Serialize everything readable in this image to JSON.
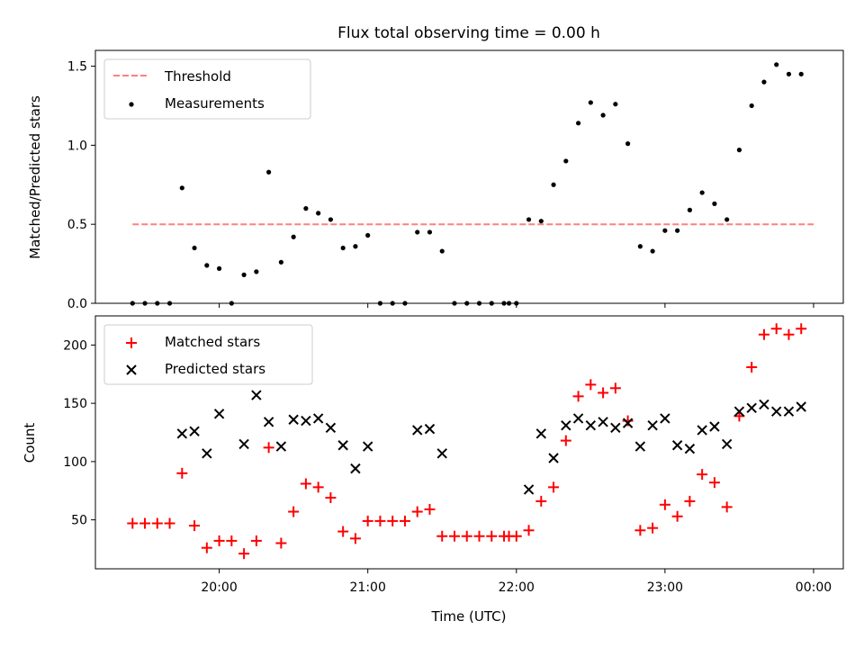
{
  "figure": {
    "title": "Flux total observing time = 0.00 h",
    "xlabel": "Time (UTC)",
    "colors": {
      "threshold": "#ff7f7f",
      "measurements": "#000000",
      "matched": "#ff0000",
      "predicted": "#000000"
    }
  },
  "chart_data": [
    {
      "type": "scatter",
      "panel": "top",
      "ylabel": "Matched/Predicted stars",
      "ylim": [
        0,
        1.6
      ],
      "yticks": [
        0.0,
        0.5,
        1.0,
        1.5
      ],
      "ytick_labels": [
        "0.0",
        "0.5",
        "1.0",
        "1.5"
      ],
      "xlim_minutes": [
        1150,
        1452
      ],
      "xticks": [
        "20:00",
        "21:00",
        "22:00",
        "23:00",
        "00:00"
      ],
      "legend": {
        "location": "upper left",
        "entries": [
          "Threshold",
          "Measurements"
        ]
      },
      "threshold": {
        "name": "Threshold",
        "value": 0.5,
        "x_range": [
          "19:25",
          "00:00"
        ],
        "style": "dashed"
      },
      "series": [
        {
          "name": "Measurements",
          "marker": "dot",
          "points": [
            [
              "19:25",
              0.0
            ],
            [
              "19:30",
              0.0
            ],
            [
              "19:35",
              0.0
            ],
            [
              "19:40",
              0.0
            ],
            [
              "19:45",
              0.73
            ],
            [
              "19:50",
              0.35
            ],
            [
              "19:55",
              0.24
            ],
            [
              "20:00",
              0.22
            ],
            [
              "20:05",
              0.0
            ],
            [
              "20:10",
              0.18
            ],
            [
              "20:15",
              0.2
            ],
            [
              "20:20",
              0.83
            ],
            [
              "20:25",
              0.26
            ],
            [
              "20:30",
              0.42
            ],
            [
              "20:35",
              0.6
            ],
            [
              "20:40",
              0.57
            ],
            [
              "20:45",
              0.53
            ],
            [
              "20:50",
              0.35
            ],
            [
              "20:55",
              0.36
            ],
            [
              "21:00",
              0.43
            ],
            [
              "21:05",
              0.0
            ],
            [
              "21:10",
              0.0
            ],
            [
              "21:15",
              0.0
            ],
            [
              "21:20",
              0.45
            ],
            [
              "21:25",
              0.45
            ],
            [
              "21:30",
              0.33
            ],
            [
              "21:35",
              0.0
            ],
            [
              "21:40",
              0.0
            ],
            [
              "21:45",
              0.0
            ],
            [
              "21:50",
              0.0
            ],
            [
              "21:55",
              0.0
            ],
            [
              "21:57",
              0.0
            ],
            [
              "22:00",
              0.0
            ],
            [
              "22:05",
              0.53
            ],
            [
              "22:10",
              0.52
            ],
            [
              "22:15",
              0.75
            ],
            [
              "22:20",
              0.9
            ],
            [
              "22:25",
              1.14
            ],
            [
              "22:30",
              1.27
            ],
            [
              "22:35",
              1.19
            ],
            [
              "22:40",
              1.26
            ],
            [
              "22:45",
              1.01
            ],
            [
              "22:50",
              0.36
            ],
            [
              "22:55",
              0.33
            ],
            [
              "23:00",
              0.46
            ],
            [
              "23:05",
              0.46
            ],
            [
              "23:10",
              0.59
            ],
            [
              "23:15",
              0.7
            ],
            [
              "23:20",
              0.63
            ],
            [
              "23:25",
              0.53
            ],
            [
              "23:30",
              0.97
            ],
            [
              "23:35",
              1.25
            ],
            [
              "23:40",
              1.4
            ],
            [
              "23:45",
              1.51
            ],
            [
              "23:50",
              1.45
            ],
            [
              "23:55",
              1.45
            ]
          ]
        }
      ]
    },
    {
      "type": "scatter",
      "panel": "bottom",
      "ylabel": "Count",
      "ylim": [
        8,
        225
      ],
      "yticks": [
        50,
        100,
        150,
        200
      ],
      "ytick_labels": [
        "50",
        "100",
        "150",
        "200"
      ],
      "xlim_minutes": [
        1150,
        1452
      ],
      "xticks": [
        "20:00",
        "21:00",
        "22:00",
        "23:00",
        "00:00"
      ],
      "legend": {
        "location": "upper left",
        "entries": [
          "Matched stars",
          "Predicted stars"
        ]
      },
      "series": [
        {
          "name": "Matched stars",
          "marker": "plus",
          "points": [
            [
              "19:25",
              47
            ],
            [
              "19:30",
              47
            ],
            [
              "19:35",
              47
            ],
            [
              "19:40",
              47
            ],
            [
              "19:45",
              90
            ],
            [
              "19:50",
              45
            ],
            [
              "19:55",
              26
            ],
            [
              "20:00",
              32
            ],
            [
              "20:05",
              32
            ],
            [
              "20:10",
              21
            ],
            [
              "20:15",
              32
            ],
            [
              "20:20",
              112
            ],
            [
              "20:25",
              30
            ],
            [
              "20:30",
              57
            ],
            [
              "20:35",
              81
            ],
            [
              "20:40",
              78
            ],
            [
              "20:45",
              69
            ],
            [
              "20:50",
              40
            ],
            [
              "20:55",
              34
            ],
            [
              "21:00",
              49
            ],
            [
              "21:05",
              49
            ],
            [
              "21:10",
              49
            ],
            [
              "21:15",
              49
            ],
            [
              "21:20",
              57
            ],
            [
              "21:25",
              59
            ],
            [
              "21:30",
              36
            ],
            [
              "21:35",
              36
            ],
            [
              "21:40",
              36
            ],
            [
              "21:45",
              36
            ],
            [
              "21:50",
              36
            ],
            [
              "21:55",
              36
            ],
            [
              "21:57",
              36
            ],
            [
              "22:00",
              36
            ],
            [
              "22:05",
              41
            ],
            [
              "22:10",
              66
            ],
            [
              "22:15",
              78
            ],
            [
              "22:20",
              118
            ],
            [
              "22:25",
              156
            ],
            [
              "22:30",
              166
            ],
            [
              "22:35",
              159
            ],
            [
              "22:40",
              163
            ],
            [
              "22:45",
              135
            ],
            [
              "22:50",
              41
            ],
            [
              "22:55",
              43
            ],
            [
              "23:00",
              63
            ],
            [
              "23:05",
              53
            ],
            [
              "23:10",
              66
            ],
            [
              "23:15",
              89
            ],
            [
              "23:20",
              82
            ],
            [
              "23:25",
              61
            ],
            [
              "23:30",
              139
            ],
            [
              "23:35",
              181
            ],
            [
              "23:40",
              209
            ],
            [
              "23:45",
              214
            ],
            [
              "23:50",
              209
            ],
            [
              "23:55",
              214
            ]
          ]
        },
        {
          "name": "Predicted stars",
          "marker": "x",
          "points": [
            [
              "19:45",
              124
            ],
            [
              "19:50",
              126
            ],
            [
              "19:55",
              107
            ],
            [
              "20:00",
              141
            ],
            [
              "20:10",
              115
            ],
            [
              "20:15",
              157
            ],
            [
              "20:20",
              134
            ],
            [
              "20:25",
              113
            ],
            [
              "20:30",
              136
            ],
            [
              "20:35",
              135
            ],
            [
              "20:40",
              137
            ],
            [
              "20:45",
              129
            ],
            [
              "20:50",
              114
            ],
            [
              "20:55",
              94
            ],
            [
              "21:00",
              113
            ],
            [
              "21:20",
              127
            ],
            [
              "21:25",
              128
            ],
            [
              "21:30",
              107
            ],
            [
              "22:05",
              76
            ],
            [
              "22:10",
              124
            ],
            [
              "22:15",
              103
            ],
            [
              "22:20",
              131
            ],
            [
              "22:25",
              137
            ],
            [
              "22:30",
              131
            ],
            [
              "22:35",
              134
            ],
            [
              "22:40",
              129
            ],
            [
              "22:45",
              133
            ],
            [
              "22:50",
              113
            ],
            [
              "22:55",
              131
            ],
            [
              "23:00",
              137
            ],
            [
              "23:05",
              114
            ],
            [
              "23:10",
              111
            ],
            [
              "23:15",
              127
            ],
            [
              "23:20",
              130
            ],
            [
              "23:25",
              115
            ],
            [
              "23:30",
              143
            ],
            [
              "23:35",
              146
            ],
            [
              "23:40",
              149
            ],
            [
              "23:45",
              143
            ],
            [
              "23:50",
              143
            ],
            [
              "23:55",
              147
            ]
          ]
        }
      ]
    }
  ]
}
